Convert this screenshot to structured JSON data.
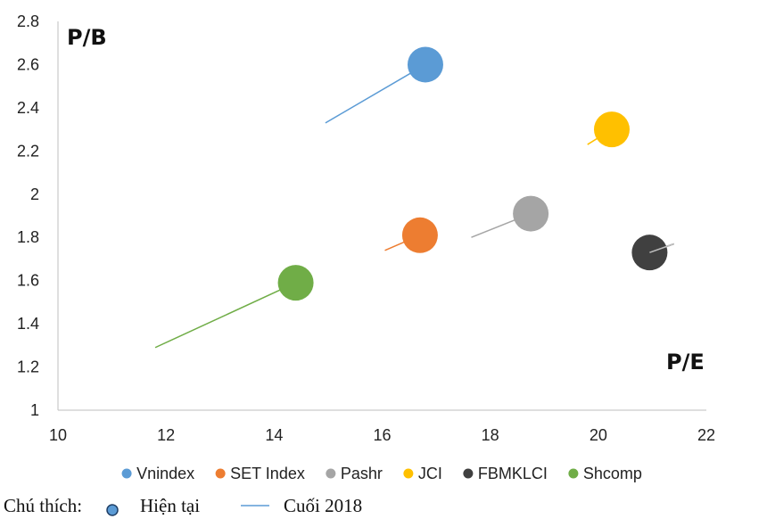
{
  "chart_data": {
    "type": "scatter",
    "xlabel": "P/E",
    "ylabel": "P/B",
    "xlim": [
      10,
      22
    ],
    "ylim": [
      1,
      2.8
    ],
    "xticks": [
      "10",
      "12",
      "14",
      "16",
      "18",
      "20",
      "22"
    ],
    "yticks": [
      "1",
      "1.2",
      "1.4",
      "1.6",
      "1.8",
      "2",
      "2.2",
      "2.4",
      "2.6",
      "2.8"
    ],
    "grid": false,
    "legend_position": "bottom",
    "series": [
      {
        "name": "Vnindex",
        "color": "#5b9bd5",
        "current": {
          "x": 16.8,
          "y": 2.6
        },
        "end_2018": {
          "x": 14.95,
          "y": 2.33
        }
      },
      {
        "name": "SET Index",
        "color": "#ed7d31",
        "current": {
          "x": 16.7,
          "y": 1.81
        },
        "end_2018": {
          "x": 16.05,
          "y": 1.74
        }
      },
      {
        "name": "Pashr",
        "color": "#a5a5a5",
        "current": {
          "x": 18.75,
          "y": 1.91
        },
        "end_2018": {
          "x": 17.65,
          "y": 1.8
        }
      },
      {
        "name": "JCI",
        "color": "#ffc000",
        "current": {
          "x": 20.25,
          "y": 2.3
        },
        "end_2018": {
          "x": 19.8,
          "y": 2.23
        }
      },
      {
        "name": "FBMKLCI",
        "color": "#404040",
        "current": {
          "x": 20.95,
          "y": 1.73
        },
        "end_2018": {
          "x": 21.4,
          "y": 1.77
        }
      },
      {
        "name": "Shcomp",
        "color": "#70ad47",
        "current": {
          "x": 14.4,
          "y": 1.59
        },
        "end_2018": {
          "x": 11.8,
          "y": 1.29
        }
      }
    ]
  },
  "note": {
    "label": "Chú thích:",
    "current_label": "Hiện tại",
    "end_label": "Cuối 2018",
    "marker_color": "#5b9bd5"
  }
}
